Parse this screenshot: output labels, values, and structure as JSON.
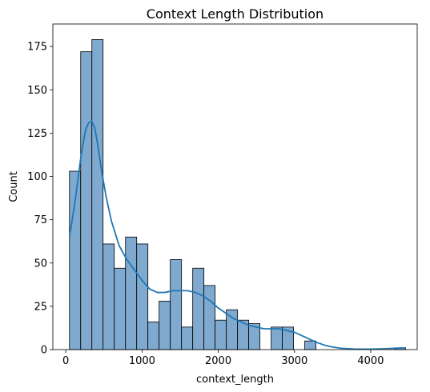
{
  "chart_data": {
    "type": "bar",
    "subtype": "histogram-with-kde",
    "title": "Context Length Distribution",
    "xlabel": "context_length",
    "ylabel": "Count",
    "xlim": [
      -170,
      4610
    ],
    "ylim": [
      0,
      188
    ],
    "x_ticks": [
      0,
      1000,
      2000,
      3000,
      4000
    ],
    "y_ticks": [
      0,
      25,
      50,
      75,
      100,
      125,
      150,
      175
    ],
    "grid": false,
    "bin_width": 147,
    "bins": [
      {
        "start": 48,
        "count": 103
      },
      {
        "start": 195,
        "count": 172
      },
      {
        "start": 342,
        "count": 179
      },
      {
        "start": 489,
        "count": 61
      },
      {
        "start": 636,
        "count": 47
      },
      {
        "start": 783,
        "count": 65
      },
      {
        "start": 930,
        "count": 61
      },
      {
        "start": 1077,
        "count": 16
      },
      {
        "start": 1224,
        "count": 28
      },
      {
        "start": 1371,
        "count": 52
      },
      {
        "start": 1518,
        "count": 13
      },
      {
        "start": 1665,
        "count": 47
      },
      {
        "start": 1812,
        "count": 37
      },
      {
        "start": 1959,
        "count": 17
      },
      {
        "start": 2106,
        "count": 23
      },
      {
        "start": 2253,
        "count": 17
      },
      {
        "start": 2400,
        "count": 15
      },
      {
        "start": 2694,
        "count": 13
      },
      {
        "start": 2841,
        "count": 13
      },
      {
        "start": 3135,
        "count": 5
      },
      {
        "start": 4311,
        "count": 1
      }
    ],
    "kde": {
      "x": [
        48,
        120,
        200,
        260,
        300,
        340,
        380,
        420,
        470,
        530,
        600,
        700,
        800,
        900,
        1000,
        1100,
        1200,
        1300,
        1400,
        1500,
        1600,
        1700,
        1800,
        1900,
        2000,
        2100,
        2200,
        2300,
        2400,
        2500,
        2600,
        2700,
        2800,
        2900,
        3000,
        3100,
        3200,
        3300,
        3400,
        3500,
        3600,
        3800,
        4000,
        4200,
        4400,
        4450
      ],
      "y": [
        65,
        85,
        112,
        127,
        131,
        132,
        128,
        118,
        103,
        88,
        74,
        60,
        52,
        46,
        40,
        35,
        33,
        33,
        34,
        34,
        34,
        33,
        31,
        28,
        24,
        21,
        18,
        16,
        14,
        13,
        12,
        12,
        12,
        11,
        10,
        8,
        6,
        4,
        2.5,
        1.5,
        0.8,
        0.3,
        0.3,
        0.5,
        1,
        1
      ]
    },
    "colors": {
      "bar_fill": "#7fa9cf",
      "bar_edge": "#000000",
      "kde_line": "#1f77b4"
    }
  }
}
